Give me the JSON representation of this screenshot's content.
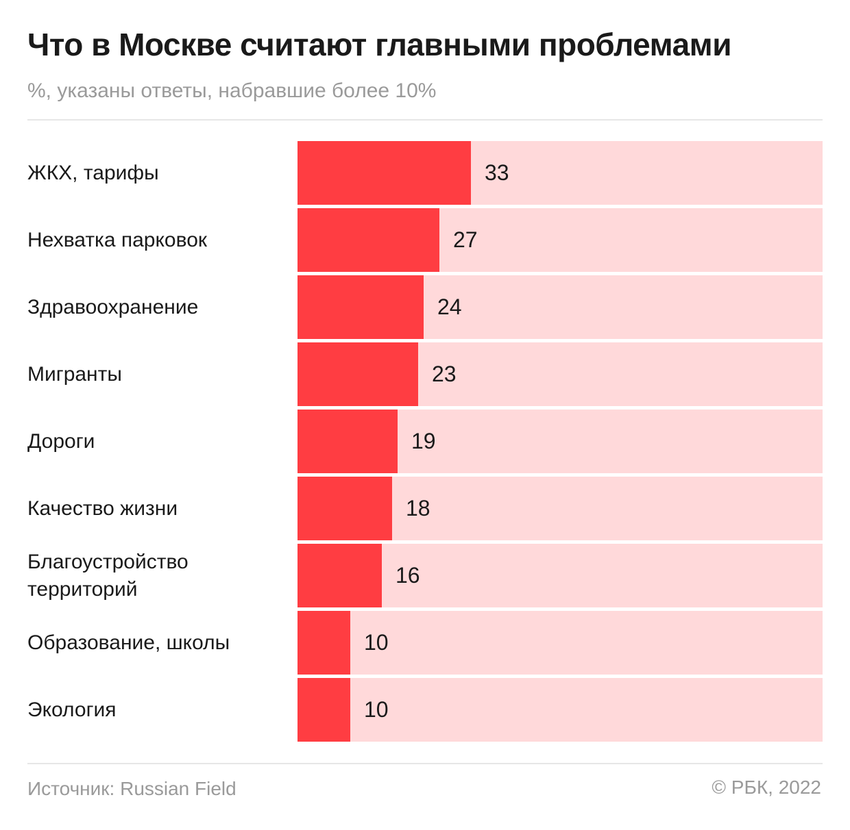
{
  "header": {
    "title": "Что в Москве считают главными проблемами",
    "subtitle": "%, указаны ответы, набравшие более 10%"
  },
  "chart_data": {
    "type": "bar",
    "orientation": "horizontal",
    "title": "Что в Москве считают главными проблемами",
    "subtitle": "%, указаны ответы, набравшие более 10%",
    "categories": [
      "ЖКХ, тарифы",
      "Нехватка парковок",
      "Здравоохранение",
      "Мигранты",
      "Дороги",
      "Качество жизни",
      "Благоустройство территорий",
      "Образование, школы",
      "Экология"
    ],
    "values": [
      33,
      27,
      24,
      23,
      19,
      18,
      16,
      10,
      10
    ],
    "xlim": [
      0,
      100
    ],
    "grid": false,
    "colors": {
      "bar": "#ff3d42",
      "track": "#ffd9da"
    }
  },
  "footer": {
    "source": "Источник: Russian Field",
    "copyright": "© РБК, 2022"
  }
}
